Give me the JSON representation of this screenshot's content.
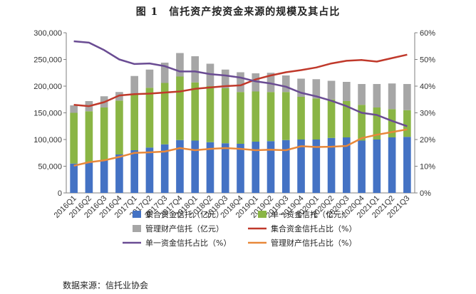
{
  "figure": {
    "title": "图 1　信托资产按资金来源的规模及其占比",
    "source": "数据来源：信托业协会"
  },
  "chart_data": {
    "type": "bar",
    "stacked": true,
    "categories": [
      "2016Q1",
      "2016Q2",
      "2016Q3",
      "2016Q4",
      "2017Q1",
      "2017Q2",
      "2017Q3",
      "2017Q4",
      "2018Q1",
      "2018Q2",
      "2018Q3",
      "2018Q4",
      "2019Q1",
      "2019Q2",
      "2019Q3",
      "2019Q4",
      "2020Q1",
      "2020Q2",
      "2020Q3",
      "2020Q4",
      "2021Q1",
      "2021Q2",
      "2021Q3"
    ],
    "y_left": {
      "min": 0,
      "max": 300000,
      "step": 50000,
      "ticks": [
        "0",
        "50,000",
        "100,000",
        "150,000",
        "200,000",
        "250,000",
        "300,000"
      ]
    },
    "y_right": {
      "min": 0,
      "max": 60,
      "step": 10,
      "ticks": [
        "0%",
        "10%",
        "20%",
        "30%",
        "40%",
        "50%",
        "60%"
      ]
    },
    "grid": false,
    "legend_position": "bottom",
    "bar_series": [
      {
        "name": "集合资金信托（亿元）",
        "color": "#4472C4",
        "values": [
          55000,
          58000,
          62000,
          72000,
          80000,
          85000,
          91000,
          99000,
          98000,
          95000,
          93000,
          92000,
          96000,
          97000,
          99000,
          100000,
          100000,
          103000,
          104000,
          98000,
          100000,
          104000,
          105000
        ]
      },
      {
        "name": "单一资金信托（亿元）",
        "color": "#8AB545",
        "values": [
          95000,
          95000,
          98000,
          101000,
          105000,
          112000,
          115000,
          119000,
          109000,
          105000,
          103000,
          97000,
          94000,
          92000,
          90000,
          80000,
          77000,
          72000,
          68000,
          67000,
          60000,
          53000,
          50000
        ]
      },
      {
        "name": "管理财产信托（亿元）",
        "color": "#A6A6A6",
        "values": [
          14000,
          19000,
          21000,
          16000,
          34000,
          34000,
          38000,
          44000,
          49000,
          42000,
          35000,
          37000,
          34000,
          36000,
          31000,
          34000,
          36000,
          35000,
          36000,
          39000,
          44000,
          48000,
          49000
        ]
      }
    ],
    "line_series": [
      {
        "name": "集合资金信托占比（%）",
        "color": "#C0392B",
        "values": [
          33,
          32.5,
          34,
          36.5,
          37,
          37.2,
          37.6,
          38,
          39,
          39.5,
          40,
          40.3,
          42.5,
          44,
          45.2,
          46,
          47,
          48.5,
          49.5,
          49.8,
          49.2,
          50.5,
          51.8
        ]
      },
      {
        "name": "单一资金信托占比（%）",
        "color": "#6A4C93",
        "values": [
          56.8,
          56.3,
          53.5,
          50,
          48.3,
          48.5,
          47.5,
          45.5,
          45.5,
          44.5,
          44,
          43.2,
          41.8,
          41,
          39.8,
          37.5,
          36.2,
          34.5,
          32.5,
          30,
          29.2,
          27,
          25
        ]
      },
      {
        "name": "管理财产信托占比（%）",
        "color": "#E8883A",
        "values": [
          10.2,
          11.5,
          12.2,
          13.5,
          15,
          15.2,
          15.5,
          16.8,
          16,
          16.5,
          16.8,
          16.5,
          16,
          16.2,
          16,
          17.5,
          17.2,
          17.3,
          17.6,
          20.5,
          21.8,
          22.8,
          23.8
        ]
      }
    ]
  }
}
